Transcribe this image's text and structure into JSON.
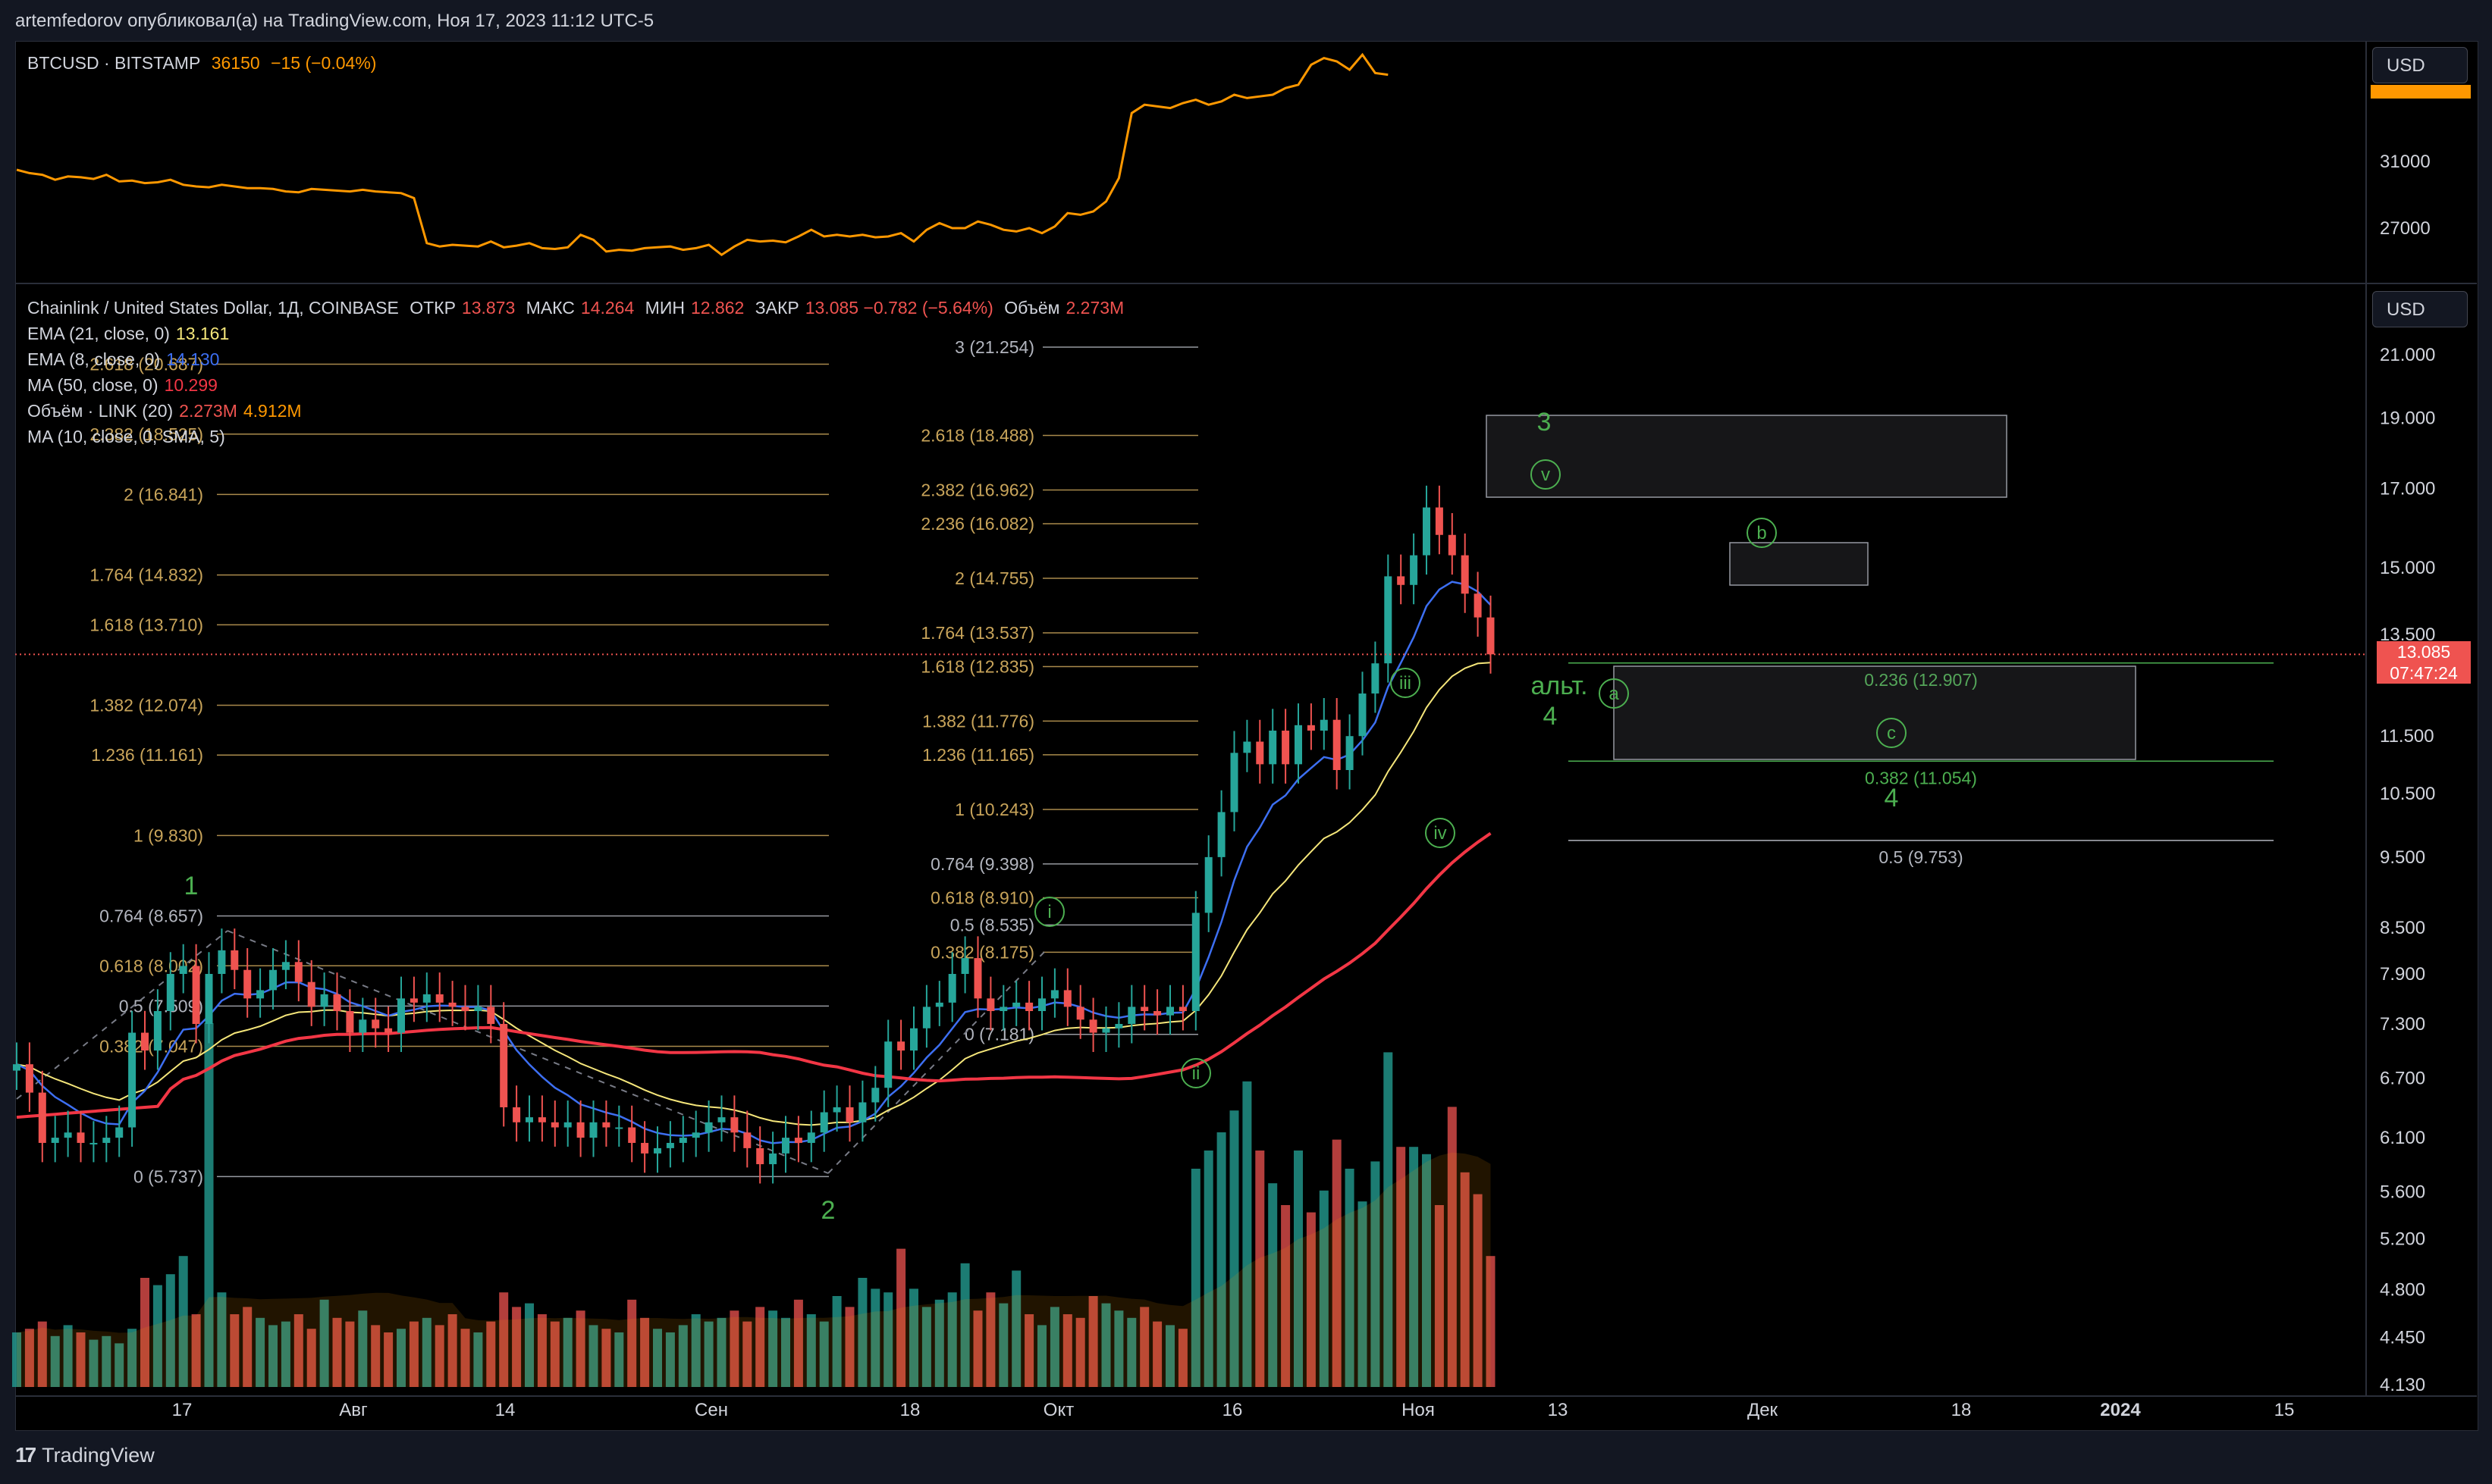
{
  "header": {
    "text": "artemfedorov опубликовал(а) на TradingView.com, Ноя 17, 2023 11:12 UTC-5"
  },
  "top_pane": {
    "symbol": "BTCUSD · BITSTAMP",
    "price": "36150",
    "change": "−15 (−0.04%)",
    "currency_button": "USD",
    "axis_ticks": [
      "31000",
      "27000"
    ]
  },
  "main_pane": {
    "title": "Chainlink / United States Dollar, 1Д, COINBASE",
    "ohlc": [
      {
        "label": "ОТКР",
        "value": "13.873"
      },
      {
        "label": "МАКС",
        "value": "14.264"
      },
      {
        "label": "МИН",
        "value": "12.862"
      },
      {
        "label": "ЗАКР",
        "value": "13.085 −0.782 (−5.64%)"
      },
      {
        "label": "Объём",
        "value": "2.273M"
      }
    ],
    "indicators": [
      {
        "label": "EMA (21, close, 0)",
        "value": "13.161",
        "color": "#f5e67a"
      },
      {
        "label": "EMA (8, close, 0)",
        "value": "14.130",
        "color": "#3d6ff2"
      },
      {
        "label": "MA (50, close, 0)",
        "value": "10.299",
        "color": "#f23645"
      },
      {
        "label": "Объём · LINK (20)",
        "value": "2.273M",
        "value2": "4.912M",
        "color": "#ef5350"
      },
      {
        "label": "MA (10, close, 0, SMA, 5)",
        "value": "",
        "color": "#d1d4dc"
      }
    ],
    "currency_button": "USD",
    "last_price": "13.085",
    "countdown": "07:47:24"
  },
  "x_axis": [
    "17",
    "Авг",
    "14",
    "Сен",
    "18",
    "Окт",
    "16",
    "Ноя",
    "13",
    "Дек",
    "18",
    "2024",
    "15"
  ],
  "footer": {
    "logo": "TradingView"
  },
  "colors": {
    "up": "#26a69a",
    "down": "#ef5350",
    "btc": "#ff9800",
    "fib_gold": "#c8a45a",
    "fib_gray": "#b2b5be",
    "wave": "#4caf50"
  },
  "chart_data": [
    {
      "type": "line",
      "title": "BTCUSD · BITSTAMP",
      "series": [
        {
          "name": "BTCUSD",
          "values": [
            30500,
            30300,
            30200,
            29900,
            30100,
            30050,
            29950,
            30200,
            29800,
            29850,
            29700,
            29750,
            29900,
            29600,
            29500,
            29450,
            29600,
            29500,
            29400,
            29400,
            29350,
            29200,
            29150,
            29350,
            29300,
            29250,
            29200,
            29300,
            29200,
            29150,
            29100,
            28800,
            26100,
            25900,
            26000,
            25950,
            25900,
            26200,
            25850,
            25950,
            26100,
            25800,
            25750,
            25850,
            26600,
            26300,
            25600,
            25700,
            25650,
            25800,
            25850,
            25900,
            25700,
            25800,
            26000,
            25400,
            25900,
            26300,
            26200,
            26250,
            26150,
            26500,
            26900,
            26500,
            26600,
            26500,
            26600,
            26450,
            26500,
            26700,
            26200,
            26900,
            27300,
            27000,
            27000,
            27400,
            27200,
            26900,
            26800,
            27000,
            26700,
            27100,
            27900,
            27800,
            28000,
            28600,
            30000,
            33900,
            34400,
            34300,
            34200,
            34500,
            34700,
            34400,
            34600,
            35000,
            34800,
            34900,
            35000,
            35400,
            35600,
            36800,
            37200,
            37000,
            36500,
            37400,
            36300,
            36200
          ]
        }
      ],
      "xlabel": "",
      "ylabel": "",
      "y_ticks": [
        31000,
        27000
      ],
      "ylim": [
        23500,
        37800
      ],
      "x_range": [
        "2023-07-03",
        "2023-11-17"
      ]
    },
    {
      "type": "candlestick",
      "title": "Chainlink / United States Dollar, 1Д, COINBASE",
      "y_scale": "log",
      "y_ticks": [
        21.0,
        19.0,
        17.0,
        15.0,
        13.5,
        12.5,
        11.5,
        10.5,
        9.5,
        8.5,
        7.9,
        7.3,
        6.7,
        6.1,
        5.6,
        5.2,
        4.8,
        4.45,
        4.13
      ],
      "y_tick_labels": [
        "21.000",
        "19.000",
        "17.000",
        "15.000",
        "13.500",
        "",
        "11.500",
        "10.500",
        "9.500",
        "8.500",
        "7.900",
        "7.300",
        "6.700",
        "6.100",
        "5.600",
        "5.200",
        "4.800",
        "4.450",
        "4.130"
      ],
      "close": [
        6.85,
        6.55,
        6.05,
        6.1,
        6.15,
        6.05,
        6.05,
        6.1,
        6.2,
        7.2,
        7.0,
        7.45,
        7.9,
        8.0,
        7.3,
        7.9,
        8.2,
        7.95,
        7.6,
        7.7,
        7.95,
        8.05,
        7.8,
        7.5,
        7.65,
        7.45,
        7.2,
        7.35,
        7.25,
        7.2,
        7.6,
        7.55,
        7.65,
        7.55,
        7.5,
        7.45,
        7.5,
        7.3,
        6.4,
        6.25,
        6.3,
        6.25,
        6.2,
        6.25,
        6.1,
        6.25,
        6.2,
        6.2,
        6.05,
        5.95,
        6.0,
        6.05,
        6.1,
        6.15,
        6.25,
        6.3,
        6.15,
        6.0,
        5.85,
        5.95,
        6.1,
        6.05,
        6.15,
        6.35,
        6.4,
        6.25,
        6.45,
        6.6,
        7.1,
        7.0,
        7.25,
        7.5,
        7.55,
        7.9,
        8.1,
        7.6,
        7.45,
        7.5,
        7.55,
        7.45,
        7.6,
        7.7,
        7.5,
        7.35,
        7.2,
        7.25,
        7.3,
        7.5,
        7.45,
        7.4,
        7.5,
        7.45,
        8.7,
        9.5,
        10.2,
        11.2,
        11.4,
        11.0,
        11.6,
        11.0,
        11.7,
        11.6,
        11.8,
        10.9,
        11.5,
        12.3,
        12.9,
        14.8,
        14.6,
        15.3,
        16.5,
        15.8,
        15.3,
        14.4,
        13.87,
        13.085
      ],
      "series": [
        {
          "name": "EMA (21, close, 0)",
          "color": "#f5e67a"
        },
        {
          "name": "EMA (8, close, 0)",
          "color": "#3d6ff2"
        },
        {
          "name": "MA (50, close, 0)",
          "color": "#f23645"
        }
      ],
      "volume": [
        1.5,
        1.6,
        1.8,
        1.4,
        1.7,
        1.5,
        1.3,
        1.4,
        1.2,
        1.6,
        3.0,
        2.8,
        3.1,
        3.6,
        2.0,
        10.0,
        2.6,
        2.0,
        2.2,
        1.9,
        1.7,
        1.8,
        2.0,
        1.6,
        2.4,
        1.9,
        1.8,
        2.1,
        1.7,
        1.5,
        1.6,
        1.8,
        1.9,
        1.7,
        2.0,
        1.6,
        1.5,
        1.8,
        2.6,
        2.2,
        2.3,
        2.0,
        1.8,
        1.9,
        2.1,
        1.7,
        1.6,
        1.5,
        2.4,
        1.9,
        1.6,
        1.5,
        1.7,
        2.0,
        1.8,
        1.9,
        2.1,
        1.8,
        2.2,
        2.1,
        1.9,
        2.4,
        2.0,
        1.8,
        2.5,
        2.2,
        3.0,
        2.7,
        2.6,
        3.8,
        2.7,
        2.2,
        2.4,
        2.6,
        3.4,
        2.1,
        2.6,
        2.3,
        3.2,
        2.0,
        1.7,
        2.2,
        2.0,
        1.9,
        2.5,
        2.3,
        2.1,
        1.9,
        2.2,
        1.8,
        1.7,
        1.6,
        6.0,
        6.5,
        7.0,
        7.6,
        8.4,
        6.5,
        5.6,
        5.0,
        6.5,
        4.8,
        5.4,
        6.8,
        6.0,
        5.1,
        6.2,
        9.2,
        6.6,
        6.6,
        6.4,
        5.0,
        7.7,
        5.9,
        5.3,
        3.6
      ],
      "fibonacci_left": [
        {
          "label": "2.618 (20.687)",
          "value": 20.687
        },
        {
          "label": "2.382 (18.525)",
          "value": 18.525
        },
        {
          "label": "2 (16.841)",
          "value": 16.841
        },
        {
          "label": "1.764 (14.832)",
          "value": 14.832
        },
        {
          "label": "1.618 (13.710)",
          "value": 13.71
        },
        {
          "label": "1.382 (12.074)",
          "value": 12.074
        },
        {
          "label": "1.236 (11.161)",
          "value": 11.161
        },
        {
          "label": "1 (9.830)",
          "value": 9.83
        },
        {
          "label": "0.764 (8.657)",
          "value": 8.657
        },
        {
          "label": "0.618 (8.002)",
          "value": 8.002
        },
        {
          "label": "0.5 (7.509)",
          "value": 7.509
        },
        {
          "label": "0.382 (7.047)",
          "value": 7.047
        },
        {
          "label": "0 (5.737)",
          "value": 5.737
        }
      ],
      "fibonacci_mid": [
        {
          "label": "3 (21.254)",
          "value": 21.254
        },
        {
          "label": "2.618 (18.488)",
          "value": 18.488
        },
        {
          "label": "2.382 (16.962)",
          "value": 16.962
        },
        {
          "label": "2.236 (16.082)",
          "value": 16.082
        },
        {
          "label": "2 (14.755)",
          "value": 14.755
        },
        {
          "label": "1.764 (13.537)",
          "value": 13.537
        },
        {
          "label": "1.618 (12.835)",
          "value": 12.835
        },
        {
          "label": "1.382 (11.776)",
          "value": 11.776
        },
        {
          "label": "1.236 (11.165)",
          "value": 11.165
        },
        {
          "label": "1 (10.243)",
          "value": 10.243
        },
        {
          "label": "0.764 (9.398)",
          "value": 9.398
        },
        {
          "label": "0.618 (8.910)",
          "value": 8.91
        },
        {
          "label": "0.5 (8.535)",
          "value": 8.535
        },
        {
          "label": "0.382 (8.175)",
          "value": 8.175
        },
        {
          "label": "0 (7.181)",
          "value": 7.181
        }
      ],
      "fibonacci_right": [
        {
          "label": "0.236 (12.907)",
          "value": 12.907
        },
        {
          "label": "0.382 (11.054)",
          "value": 11.054
        },
        {
          "label": "0.5 (9.753)",
          "value": 9.753
        }
      ],
      "wave_labels": [
        "1",
        "2",
        "3",
        "4",
        "i",
        "ii",
        "iii",
        "iv",
        "v",
        "a",
        "b",
        "c",
        "альт.",
        "4"
      ]
    }
  ]
}
